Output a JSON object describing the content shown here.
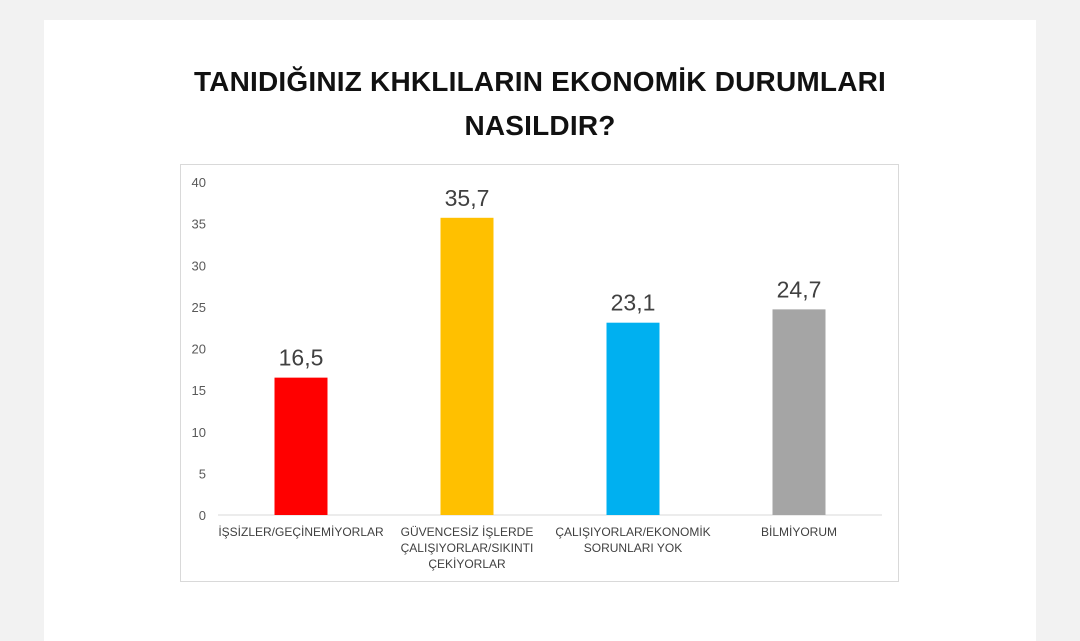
{
  "chart_data": {
    "type": "bar",
    "title_lines": [
      "TANIDIĞINIZ KHKLILARIN EKONOMİK DURUMLARI",
      "NASILDIR?"
    ],
    "categories": [
      [
        "İŞSİZLER/GEÇİNEMİYORLAR"
      ],
      [
        "GÜVENCESİZ İŞLERDE",
        "ÇALIŞIYORLAR/SIKINTI",
        "ÇEKİYORLAR"
      ],
      [
        "ÇALIŞIYORLAR/EKONOMİK",
        "SORUNLARI YOK"
      ],
      [
        "BİLMİYORUM"
      ]
    ],
    "values": [
      16.5,
      35.7,
      23.1,
      24.7
    ],
    "value_labels": [
      "16,5",
      "35,7",
      "23,1",
      "24,7"
    ],
    "colors": [
      "#ff0000",
      "#ffc000",
      "#00b0f0",
      "#a5a5a5"
    ],
    "ylim": [
      0,
      40
    ],
    "yticks": [
      0,
      5,
      10,
      15,
      20,
      25,
      30,
      35,
      40
    ],
    "grid": false,
    "legend": "none"
  }
}
